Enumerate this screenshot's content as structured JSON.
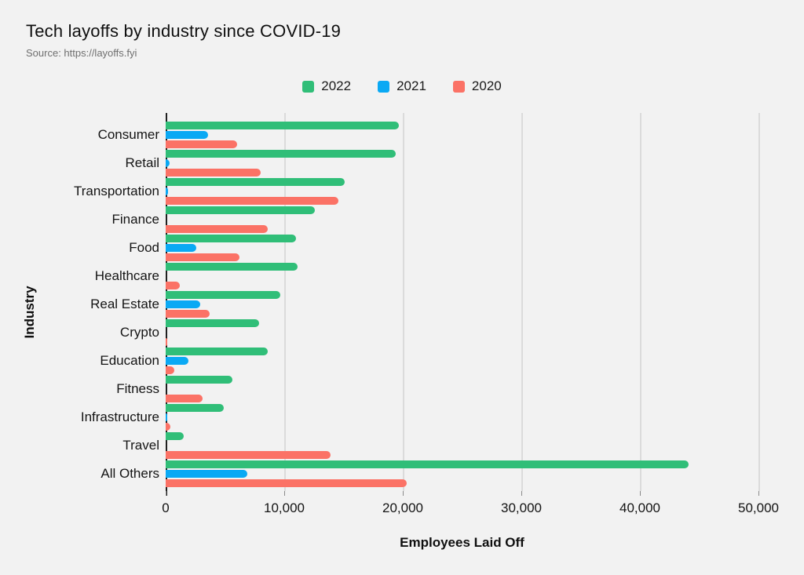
{
  "title": "Tech layoffs by industry since COVID-19",
  "source": "Source: https://layoffs.fyi",
  "colors": {
    "background": "#F2F2F2",
    "gridline": "#DBDBDB",
    "axis": "#202020",
    "series_2022": "#30BE78",
    "series_2021": "#0AA9F4",
    "series_2020": "#FB7266"
  },
  "chart_data": {
    "type": "bar",
    "orientation": "horizontal",
    "title": "Tech layoffs by industry since COVID-19",
    "subtitle": "Source: https://layoffs.fyi",
    "xlabel": "Employees Laid Off",
    "ylabel": "Industry",
    "legend_position": "top",
    "grid": "vertical",
    "xlim": [
      0,
      50000
    ],
    "xticks": [
      0,
      10000,
      20000,
      30000,
      40000,
      50000
    ],
    "xtick_labels": [
      "0",
      "10,000",
      "20,000",
      "30,000",
      "40,000",
      "50,000"
    ],
    "categories": [
      "Consumer",
      "Retail",
      "Transportation",
      "Finance",
      "Food",
      "Healthcare",
      "Real Estate",
      "Crypto",
      "Education",
      "Fitness",
      "Infrastructure",
      "Travel",
      "All Others"
    ],
    "series": [
      {
        "name": "2022",
        "color": "#30BE78",
        "values": [
          19700,
          19400,
          15100,
          12600,
          11000,
          11100,
          9700,
          7900,
          8600,
          5600,
          4900,
          1500,
          44100
        ]
      },
      {
        "name": "2021",
        "color": "#0AA9F4",
        "values": [
          3600,
          350,
          220,
          0,
          2600,
          0,
          2900,
          0,
          1900,
          0,
          150,
          0,
          6900
        ]
      },
      {
        "name": "2020",
        "color": "#FB7266",
        "values": [
          6000,
          8000,
          14600,
          8600,
          6200,
          1200,
          3700,
          150,
          700,
          3100,
          400,
          13900,
          20300
        ]
      }
    ]
  }
}
